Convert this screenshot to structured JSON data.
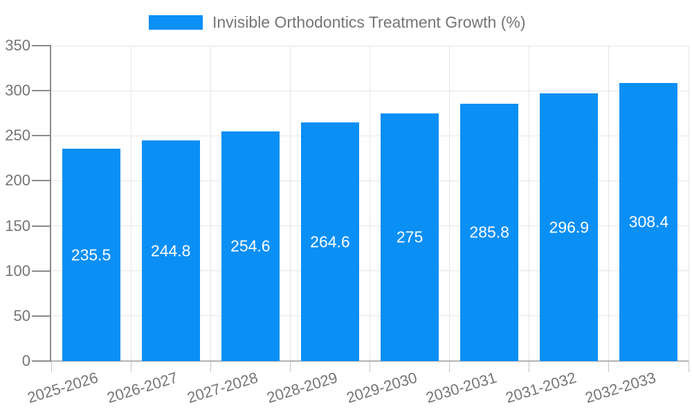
{
  "legend": {
    "label": "Invisible Orthodontics Treatment Growth (%)"
  },
  "colors": {
    "bar": "#0a8ff5",
    "grid": "#e6e6e6",
    "axis": "#8a8a8a",
    "baseline": "#b3b3b3",
    "x_tick": "#c4c4c4",
    "text": "#757575",
    "bar_label": "#ffffff"
  },
  "chart_data": {
    "type": "bar",
    "title": "Invisible Orthodontics Treatment Growth (%)",
    "categories": [
      "2025-2026",
      "2026-2027",
      "2027-2028",
      "2028-2029",
      "2029-2030",
      "2030-2031",
      "2031-2032",
      "2032-2033"
    ],
    "series": [
      {
        "name": "Invisible Orthodontics Treatment Growth (%)",
        "values": [
          235.5,
          244.8,
          254.6,
          264.6,
          275,
          285.8,
          296.9,
          308.4
        ]
      }
    ],
    "value_labels": [
      "235.5",
      "244.8",
      "254.6",
      "264.6",
      "275",
      "285.8",
      "296.9",
      "308.4"
    ],
    "xlabel": "",
    "ylabel": "",
    "ylim": [
      0,
      350
    ],
    "yticks": [
      0,
      50,
      100,
      150,
      200,
      250,
      300,
      350
    ],
    "grid": true,
    "legend_position": "top",
    "bar_label_position": "inside-center",
    "x_label_rotation_deg": -17
  }
}
